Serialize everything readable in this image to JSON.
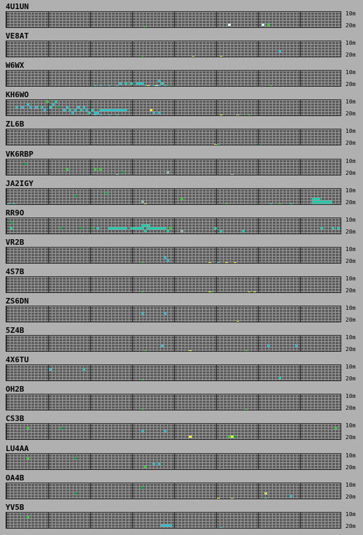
{
  "band_labels": {
    "top": "10m",
    "bottom": "20m"
  },
  "grid": {
    "hours": 24,
    "cells_per_hour": 6,
    "bands": 6
  },
  "colors": {
    "g": "#33cc33",
    "d": "#119944",
    "t": "#22ccaa",
    "c": "#33bbcc",
    "y": "#eeee33",
    "l": "#bbdd66",
    "w": "#ddffee",
    "s": "#99bbaa"
  },
  "beacons": [
    {
      "callsign": "4U1UN",
      "spots": [
        [
          79,
          1,
          "w"
        ],
        [
          91,
          1,
          "w"
        ],
        [
          49,
          0,
          "g"
        ],
        [
          93,
          1,
          "g"
        ]
      ]
    },
    {
      "callsign": "VE8AT",
      "spots": [
        [
          97,
          2,
          "c"
        ],
        [
          48,
          0,
          "g"
        ],
        [
          66,
          0,
          "l"
        ],
        [
          76,
          0,
          "y"
        ]
      ]
    },
    {
      "callsign": "W6WX",
      "spots": [
        [
          31,
          0,
          "t"
        ],
        [
          33,
          0,
          "c"
        ],
        [
          36,
          0,
          "c"
        ],
        [
          39,
          0,
          "t"
        ],
        [
          40,
          1,
          "c"
        ],
        [
          42,
          1,
          "t"
        ],
        [
          44,
          1,
          "t"
        ],
        [
          46,
          1,
          "c"
        ],
        [
          47,
          1,
          "t"
        ],
        [
          48,
          1,
          "c"
        ],
        [
          49,
          0,
          "c"
        ],
        [
          50,
          0,
          "y"
        ],
        [
          52,
          0,
          "c"
        ],
        [
          53,
          0,
          "w"
        ],
        [
          54,
          0,
          "c"
        ],
        [
          54,
          2,
          "c"
        ],
        [
          55,
          1,
          "t"
        ],
        [
          56,
          0,
          "t"
        ],
        [
          58,
          0,
          "d"
        ],
        [
          94,
          0,
          "g"
        ]
      ]
    },
    {
      "callsign": "KH6WO",
      "spots": [
        [
          7,
          4,
          "c"
        ],
        [
          14,
          5,
          "g"
        ],
        [
          16,
          4,
          "c"
        ],
        [
          17,
          5,
          "t"
        ],
        [
          18,
          3,
          "d"
        ],
        [
          24,
          2,
          "c"
        ],
        [
          26,
          2,
          "t"
        ],
        [
          27,
          3,
          "c"
        ],
        [
          29,
          1,
          "t"
        ],
        [
          3,
          3,
          "c"
        ],
        [
          5,
          3,
          "c"
        ],
        [
          8,
          3,
          "c"
        ],
        [
          10,
          3,
          "c"
        ],
        [
          12,
          3,
          "t"
        ],
        [
          13,
          2,
          "c"
        ],
        [
          15,
          3,
          "t"
        ],
        [
          20,
          2,
          "c"
        ],
        [
          21,
          3,
          "c"
        ],
        [
          22,
          2,
          "t"
        ],
        [
          23,
          1,
          "c"
        ],
        [
          25,
          3,
          "c"
        ],
        [
          28,
          2,
          "c"
        ],
        [
          30,
          2,
          "t"
        ],
        [
          31,
          1,
          "c"
        ],
        [
          32,
          1,
          "c"
        ],
        [
          33,
          2,
          "t"
        ],
        [
          34,
          2,
          "c"
        ],
        [
          35,
          2,
          "c"
        ],
        [
          36,
          2,
          "t"
        ],
        [
          37,
          2,
          "c"
        ],
        [
          38,
          2,
          "c"
        ],
        [
          39,
          2,
          "c"
        ],
        [
          40,
          2,
          "c"
        ],
        [
          41,
          2,
          "t"
        ],
        [
          42,
          2,
          "c"
        ],
        [
          31,
          0,
          "t"
        ],
        [
          33,
          0,
          "c"
        ],
        [
          36,
          0,
          "c"
        ],
        [
          39,
          0,
          "t"
        ],
        [
          51,
          2,
          "y"
        ],
        [
          52,
          1,
          "c"
        ],
        [
          54,
          1,
          "c"
        ],
        [
          76,
          0,
          "y"
        ],
        [
          82,
          0,
          "l"
        ],
        [
          86,
          0,
          "g"
        ]
      ]
    },
    {
      "callsign": "ZL6B",
      "spots": [
        [
          74,
          0,
          "y"
        ],
        [
          75,
          0,
          "c"
        ],
        [
          90,
          0,
          "d"
        ]
      ]
    },
    {
      "callsign": "VK6RBP",
      "spots": [
        [
          6,
          4,
          "d"
        ],
        [
          21,
          2,
          "g"
        ],
        [
          31,
          2,
          "g"
        ],
        [
          33,
          2,
          "g"
        ],
        [
          41,
          1,
          "d"
        ],
        [
          39,
          0,
          "s"
        ],
        [
          57,
          1,
          "s"
        ],
        [
          80,
          0,
          "s"
        ]
      ]
    },
    {
      "callsign": "JA2IGY",
      "spots": [
        [
          35,
          4,
          "d"
        ],
        [
          0,
          0,
          "t"
        ],
        [
          2,
          0,
          "t"
        ],
        [
          24,
          3,
          "d"
        ],
        [
          48,
          1,
          "s"
        ],
        [
          49,
          0,
          "l"
        ],
        [
          62,
          2,
          "g"
        ],
        [
          78,
          0,
          "g"
        ],
        [
          94,
          0,
          "c"
        ],
        [
          97,
          0,
          "g"
        ],
        [
          101,
          0,
          "t"
        ],
        [
          109,
          2,
          "t"
        ],
        [
          110,
          2,
          "t"
        ],
        [
          111,
          2,
          "t"
        ],
        [
          109,
          1,
          "t"
        ],
        [
          110,
          1,
          "t"
        ],
        [
          111,
          1,
          "t"
        ],
        [
          112,
          1,
          "t"
        ],
        [
          113,
          1,
          "t"
        ],
        [
          109,
          0,
          "t"
        ],
        [
          110,
          0,
          "t"
        ],
        [
          111,
          0,
          "t"
        ],
        [
          112,
          0,
          "t"
        ],
        [
          113,
          0,
          "t"
        ],
        [
          114,
          0,
          "t"
        ],
        [
          115,
          0,
          "t"
        ],
        [
          114,
          1,
          "t"
        ],
        [
          115,
          1,
          "t"
        ]
      ]
    },
    {
      "callsign": "RR9O",
      "spots": [
        [
          1,
          4,
          "d"
        ],
        [
          1,
          2,
          "t"
        ],
        [
          19,
          2,
          "d"
        ],
        [
          26,
          2,
          "d"
        ],
        [
          30,
          2,
          "d"
        ],
        [
          32,
          2,
          "t"
        ],
        [
          36,
          2,
          "t"
        ],
        [
          37,
          2,
          "t"
        ],
        [
          38,
          2,
          "t"
        ],
        [
          39,
          2,
          "t"
        ],
        [
          40,
          2,
          "t"
        ],
        [
          41,
          2,
          "t"
        ],
        [
          42,
          2,
          "t"
        ],
        [
          44,
          2,
          "t"
        ],
        [
          45,
          2,
          "t"
        ],
        [
          46,
          2,
          "t"
        ],
        [
          47,
          2,
          "t"
        ],
        [
          48,
          2,
          "t"
        ],
        [
          48,
          3,
          "t"
        ],
        [
          49,
          3,
          "t"
        ],
        [
          49,
          1,
          "t"
        ],
        [
          50,
          3,
          "t"
        ],
        [
          50,
          2,
          "t"
        ],
        [
          51,
          2,
          "t"
        ],
        [
          52,
          2,
          "t"
        ],
        [
          53,
          2,
          "t"
        ],
        [
          54,
          2,
          "t"
        ],
        [
          55,
          2,
          "t"
        ],
        [
          56,
          2,
          "t"
        ],
        [
          57,
          1,
          "t"
        ],
        [
          58,
          2,
          "g"
        ],
        [
          62,
          1,
          "s"
        ],
        [
          74,
          2,
          "t"
        ],
        [
          76,
          1,
          "t"
        ],
        [
          84,
          1,
          "t"
        ],
        [
          112,
          2,
          "t"
        ],
        [
          116,
          2,
          "t"
        ],
        [
          118,
          2,
          "t"
        ]
      ]
    },
    {
      "callsign": "VR2B",
      "spots": [
        [
          56,
          2,
          "c"
        ],
        [
          57,
          1,
          "c"
        ],
        [
          48,
          0,
          "g"
        ],
        [
          72,
          0,
          "y"
        ],
        [
          75,
          0,
          "c"
        ],
        [
          78,
          0,
          "y"
        ],
        [
          81,
          0,
          "y"
        ]
      ]
    },
    {
      "callsign": "4S7B",
      "spots": [
        [
          48,
          0,
          "g"
        ],
        [
          72,
          0,
          "y"
        ],
        [
          73,
          0,
          "g"
        ],
        [
          86,
          0,
          "l"
        ],
        [
          88,
          0,
          "y"
        ]
      ]
    },
    {
      "callsign": "ZS6DN",
      "spots": [
        [
          48,
          3,
          "c"
        ],
        [
          56,
          3,
          "c"
        ],
        [
          82,
          0,
          "y"
        ]
      ]
    },
    {
      "callsign": "5Z4B",
      "spots": [
        [
          55,
          2,
          "c"
        ],
        [
          49,
          0,
          "g"
        ],
        [
          65,
          0,
          "y"
        ],
        [
          85,
          0,
          "g"
        ],
        [
          93,
          2,
          "c"
        ],
        [
          103,
          2,
          "c"
        ]
      ]
    },
    {
      "callsign": "4X6TU",
      "spots": [
        [
          15,
          4,
          "c"
        ],
        [
          27,
          4,
          "c"
        ],
        [
          97,
          1,
          "t"
        ],
        [
          48,
          0,
          "g"
        ]
      ]
    },
    {
      "callsign": "OH2B",
      "spots": [
        [
          48,
          0,
          "g"
        ],
        [
          85,
          0,
          "g"
        ]
      ]
    },
    {
      "callsign": "CS3B",
      "spots": [
        [
          7,
          4,
          "g"
        ],
        [
          19,
          4,
          "d"
        ],
        [
          117,
          4,
          "g"
        ],
        [
          48,
          3,
          "c"
        ],
        [
          56,
          3,
          "c"
        ],
        [
          65,
          1,
          "y"
        ],
        [
          79,
          1,
          "g"
        ],
        [
          80,
          1,
          "y"
        ],
        [
          81,
          1,
          "d"
        ]
      ]
    },
    {
      "callsign": "LU4AA",
      "spots": [
        [
          7,
          4,
          "g"
        ],
        [
          24,
          4,
          "d"
        ],
        [
          52,
          2,
          "c"
        ],
        [
          54,
          2,
          "c"
        ],
        [
          49,
          1,
          "g"
        ]
      ]
    },
    {
      "callsign": "OA4B",
      "spots": [
        [
          48,
          4,
          "d"
        ],
        [
          24,
          2,
          "d"
        ],
        [
          75,
          0,
          "y"
        ],
        [
          80,
          0,
          "l"
        ],
        [
          92,
          2,
          "l"
        ],
        [
          92,
          0,
          "c"
        ],
        [
          101,
          1,
          "c"
        ]
      ]
    },
    {
      "callsign": "YV5B",
      "spots": [
        [
          7,
          4,
          "g"
        ],
        [
          55,
          1,
          "c"
        ],
        [
          56,
          1,
          "c"
        ],
        [
          57,
          1,
          "c"
        ],
        [
          58,
          1,
          "c"
        ],
        [
          76,
          0,
          "c"
        ]
      ]
    }
  ]
}
